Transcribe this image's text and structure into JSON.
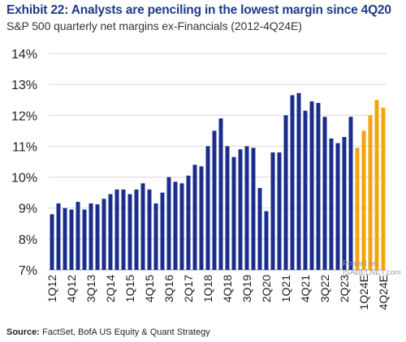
{
  "title": "Exhibit 22: Analysts are penciling in the lowest margin since 4Q20",
  "subtitle": "S&P 500 quarterly net margins ex-Financials (2012-4Q24E)",
  "source_label": "Source:",
  "source_text": "FactSet, BofA US Equity & Quant Strategy",
  "watermark_line1": "Posted on",
  "watermark_line2": "ISABELNET.com",
  "colors": {
    "actual": "#1a2d8c",
    "estimate": "#f2a60c",
    "title": "#1f3b87",
    "grid": "#d9d9d9"
  },
  "chart_data": {
    "type": "bar",
    "title": "Exhibit 22: Analysts are penciling in the lowest margin since 4Q20",
    "subtitle": "S&P 500 quarterly net margins ex-Financials (2012-4Q24E)",
    "ylim": [
      7,
      14
    ],
    "y_ticks": [
      "7%",
      "8%",
      "9%",
      "10%",
      "11%",
      "12%",
      "13%",
      "14%"
    ],
    "grid": true,
    "categories": [
      "1Q12",
      "2Q12",
      "3Q12",
      "4Q12",
      "1Q13",
      "2Q13",
      "3Q13",
      "4Q13",
      "1Q14",
      "2Q14",
      "3Q14",
      "4Q14",
      "1Q15",
      "2Q15",
      "3Q15",
      "4Q15",
      "1Q16",
      "2Q16",
      "3Q16",
      "4Q16",
      "1Q17",
      "2Q17",
      "3Q17",
      "4Q17",
      "1Q18",
      "2Q18",
      "3Q18",
      "4Q18",
      "1Q19",
      "2Q19",
      "3Q19",
      "4Q19",
      "1Q20",
      "2Q20",
      "3Q20",
      "4Q20",
      "1Q21",
      "2Q21",
      "3Q21",
      "4Q21",
      "1Q22",
      "2Q22",
      "3Q22",
      "4Q22",
      "1Q23",
      "2Q23",
      "3Q23",
      "4Q23",
      "1Q24E",
      "2Q24E",
      "3Q24E",
      "4Q24E"
    ],
    "tick_labels": [
      "1Q12",
      "4Q12",
      "3Q13",
      "2Q14",
      "1Q15",
      "4Q15",
      "3Q16",
      "2Q17",
      "1Q18",
      "4Q18",
      "3Q19",
      "2Q20",
      "1Q21",
      "4Q21",
      "3Q22",
      "2Q23",
      "1Q24E",
      "4Q24E"
    ],
    "values": [
      8.8,
      9.15,
      9.0,
      8.95,
      9.2,
      8.95,
      9.15,
      9.12,
      9.3,
      9.45,
      9.6,
      9.6,
      9.45,
      9.6,
      9.8,
      9.6,
      9.15,
      9.5,
      10.0,
      9.85,
      9.8,
      10.05,
      10.4,
      10.35,
      11.0,
      11.5,
      11.9,
      11.0,
      10.65,
      10.9,
      11.0,
      10.95,
      9.65,
      8.9,
      10.8,
      10.8,
      12.0,
      12.65,
      12.72,
      12.15,
      12.45,
      12.4,
      11.95,
      11.25,
      11.1,
      11.3,
      11.95,
      10.95,
      11.5,
      12.0,
      12.5,
      12.25
    ],
    "estimate_start_index": 47
  }
}
